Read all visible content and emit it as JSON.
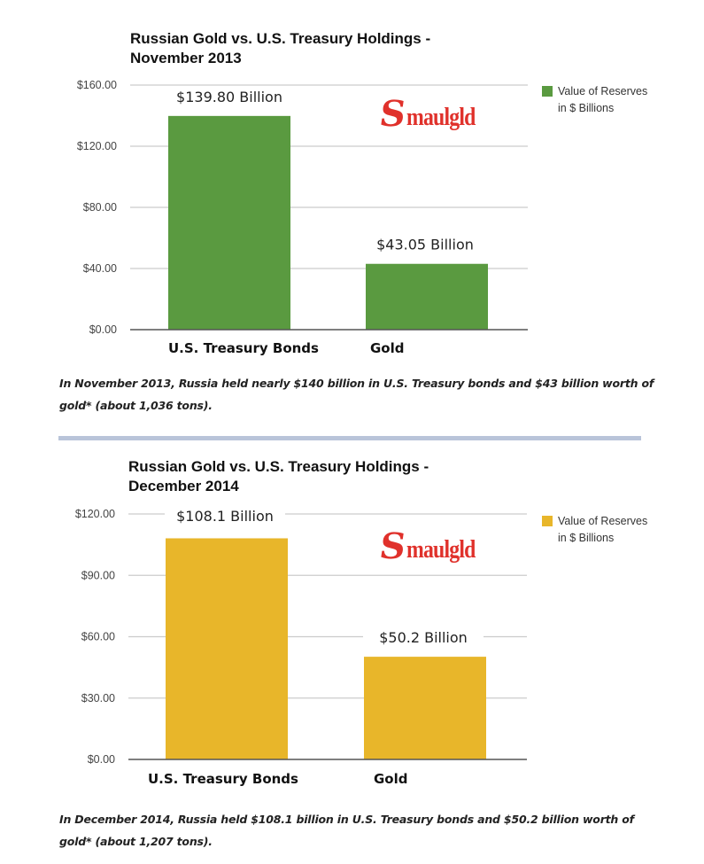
{
  "chart_data": [
    {
      "type": "bar",
      "title": "Russian Gold vs. U.S. Treasury Holdings - November 2013",
      "title_lines": [
        "Russian Gold vs. U.S. Treasury Holdings -",
        "November 2013"
      ],
      "categories": [
        "U.S. Treasury Bonds",
        "Gold"
      ],
      "values": [
        139.8,
        43.05
      ],
      "data_labels": [
        "$139.80 Billion",
        "$43.05 Billion"
      ],
      "ylim": [
        0,
        160
      ],
      "yticks": [
        0,
        40,
        80,
        120,
        160
      ],
      "ytick_labels": [
        "$0.00",
        "$40.00",
        "$80.00",
        "$120.00",
        "$160.00"
      ],
      "xlabel": "",
      "ylabel": "",
      "grid": true,
      "legend": {
        "position": "right",
        "entries": [
          "Value of Reserves in $ Billions"
        ]
      },
      "color": "#5a9a40",
      "watermark": "Smaulgld",
      "caption": "In November 2013, Russia held nearly $140 billion in U.S. Treasury bonds and $43 billion worth of gold* (about 1,036 tons)."
    },
    {
      "type": "bar",
      "title": "Russian Gold vs. U.S. Treasury Holdings - December 2014",
      "title_lines": [
        "Russian Gold vs. U.S. Treasury Holdings -",
        "December 2014"
      ],
      "categories": [
        "U.S. Treasury Bonds",
        "Gold"
      ],
      "values": [
        108.1,
        50.2
      ],
      "data_labels": [
        "$108.1 Billion",
        "$50.2 Billion"
      ],
      "ylim": [
        0,
        120
      ],
      "yticks": [
        0,
        30,
        60,
        90,
        120
      ],
      "ytick_labels": [
        "$0.00",
        "$30.00",
        "$60.00",
        "$90.00",
        "$120.00"
      ],
      "xlabel": "",
      "ylabel": "",
      "grid": true,
      "legend": {
        "position": "right",
        "entries": [
          "Value of Reserves in $ Billions"
        ]
      },
      "color": "#e8b62a",
      "watermark": "Smaulgld",
      "caption": "In December 2014, Russia held $108.1 billion in U.S. Treasury bonds and $50.2 billion worth of gold* (about 1,207 tons)."
    }
  ]
}
